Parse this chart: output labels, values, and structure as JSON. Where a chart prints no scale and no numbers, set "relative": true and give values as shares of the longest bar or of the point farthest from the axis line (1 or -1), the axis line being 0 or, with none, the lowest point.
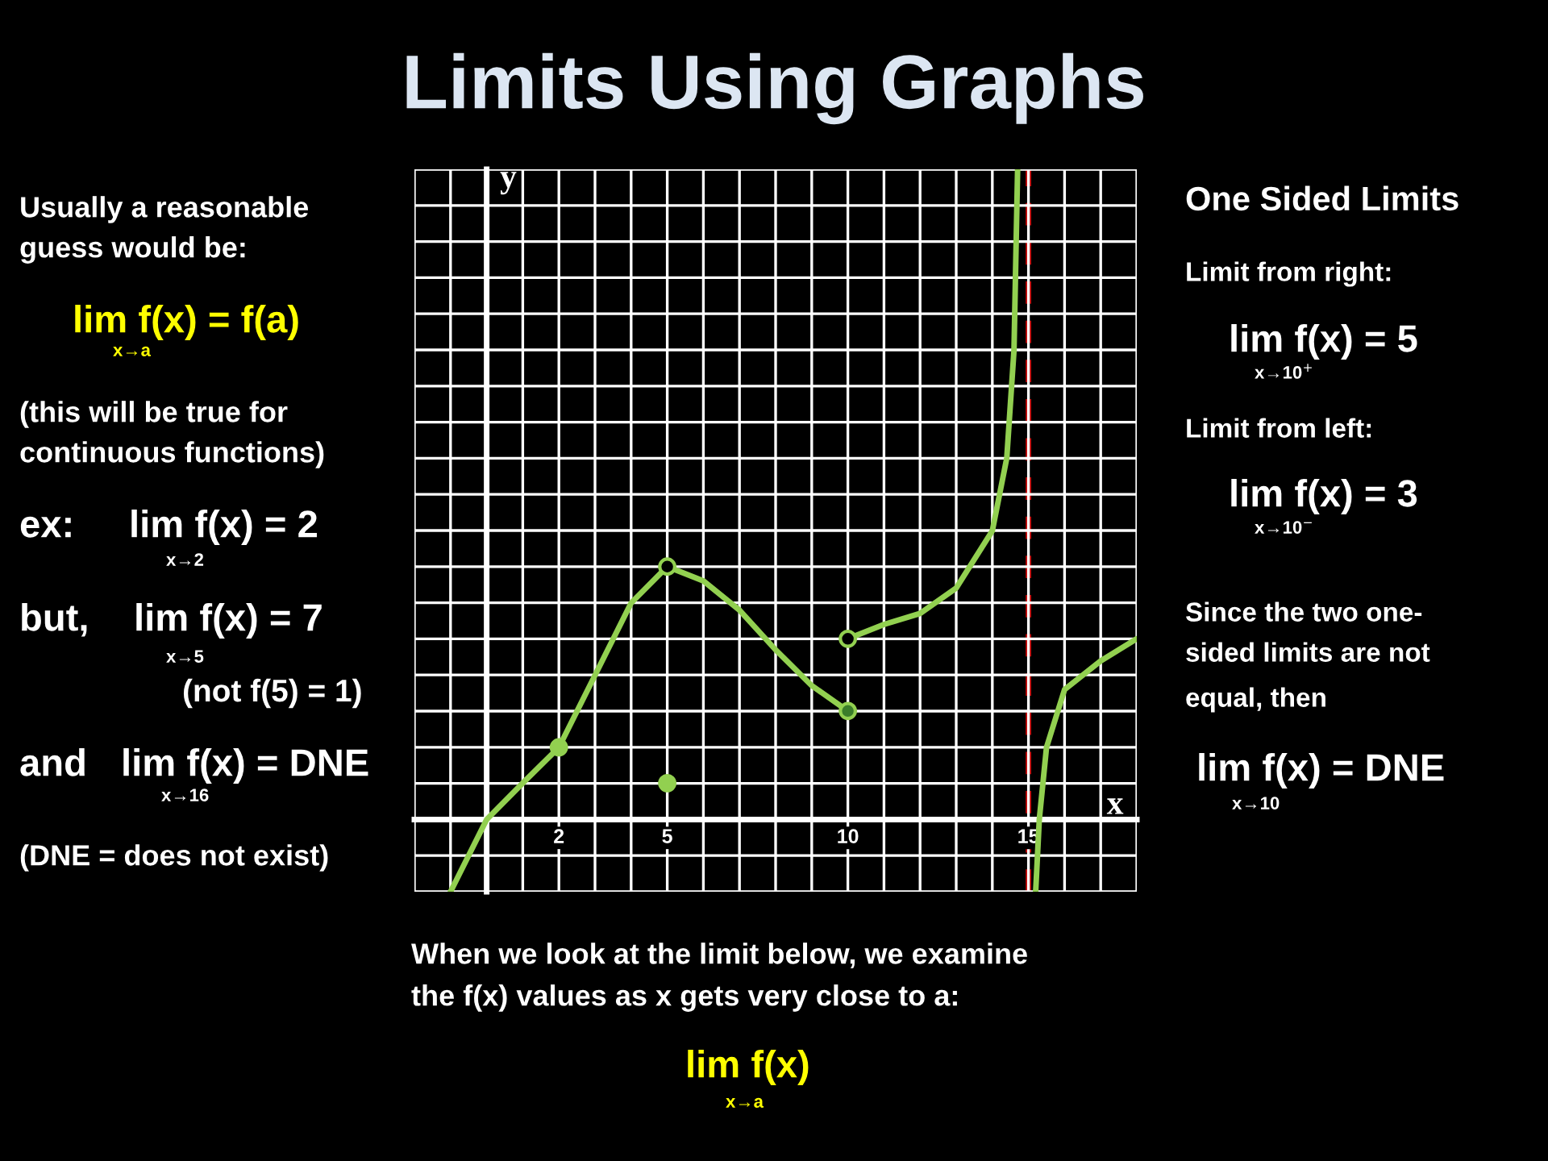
{
  "chart_data": {
    "type": "line",
    "title": "Limits Using Graphs",
    "xlabel": "x",
    "ylabel": "y",
    "xlim": [
      -2,
      18
    ],
    "relative": true,
    "xticks": [
      {
        "value": -2,
        "label": null
      },
      {
        "value": -1,
        "label": null
      },
      {
        "value": 0,
        "label": null
      },
      {
        "value": 1,
        "label": null
      },
      2,
      {
        "value": 3,
        "label": null
      },
      {
        "value": 4,
        "label": null
      },
      5,
      {
        "value": 6,
        "label": null
      },
      {
        "value": 7,
        "label": null
      },
      {
        "value": 8,
        "label": null
      },
      {
        "value": 9,
        "label": null
      },
      10,
      {
        "value": 11,
        "label": null
      },
      {
        "value": 12,
        "label": null
      },
      {
        "value": 13,
        "label": null
      },
      {
        "value": 14,
        "label": null
      },
      15,
      {
        "value": 16,
        "label": null
      },
      {
        "value": 17,
        "label": null
      },
      {
        "value": 18,
        "label": null
      }
    ],
    "tick_labels": "x",
    "grid": true,
    "line_style": "solid",
    "series": [
      {
        "type": "line",
        "color": "#92d050",
        "x": [
          -1,
          0,
          1,
          2,
          3,
          4,
          5,
          6,
          7,
          8,
          9,
          10
        ],
        "values": [
          -0.111,
          0,
          0.056,
          0.111,
          0.222,
          0.333,
          0.389,
          0.367,
          0.322,
          0.261,
          0.206,
          0.167
        ]
      },
      {
        "type": "line",
        "color": "#92d050",
        "x": [
          10,
          11,
          12,
          13,
          14,
          14.4,
          14.6,
          14.7
        ],
        "values": [
          0.278,
          0.3,
          0.317,
          0.356,
          0.444,
          0.556,
          0.722,
          1
        ]
      },
      {
        "type": "line",
        "color": "#92d050",
        "x": [
          15.2,
          15.3,
          15.5,
          16,
          17,
          18
        ],
        "values": [
          -0.111,
          0,
          0.111,
          0.2,
          0.244,
          0.278
        ]
      },
      {
        "type": "scatter",
        "marker": "circle",
        "colors": [
          "#92d050",
          "#92d050",
          "#3a7d2a"
        ],
        "x": [
          2,
          5,
          10
        ],
        "values": [
          0.111,
          0.056,
          0.167
        ]
      },
      {
        "type": "scatter",
        "marker": "circle",
        "colors": [
          "#000000",
          "#000000"
        ],
        "x": [
          5,
          10
        ],
        "values": [
          0.389,
          0.278
        ]
      }
    ],
    "ref_lines": [
      {
        "axis": "x",
        "value": 15,
        "color": "#c00000",
        "line_style": "dashed"
      }
    ],
    "annotations": [
      "Usually a reasonable",
      "guess would be:",
      "lim f(x) = f(a)",
      "x→a",
      "(this will be true for",
      "continuous functions)",
      "ex:",
      "lim f(x) = 2",
      "x→2",
      "but,",
      "lim f(x) = 7",
      "x→5",
      "(not f(5) = 1)",
      "and",
      "lim f(x) = DNE",
      "x→16",
      "(DNE = does not exist)",
      "One Sided Limits",
      "Limit from right:",
      "lim f(x) = 5",
      "x→10$^{+}$",
      "Limit from left:",
      "lim f(x) = 3",
      "x→10$^{−}$",
      "Since the two one-",
      "sided limits are not",
      "equal, then",
      "lim f(x) = DNE",
      "x→10",
      "When we look at the limit below, we examine",
      "the f(x) values as x gets very close to a:",
      "lim f(x)",
      "x→a"
    ]
  }
}
